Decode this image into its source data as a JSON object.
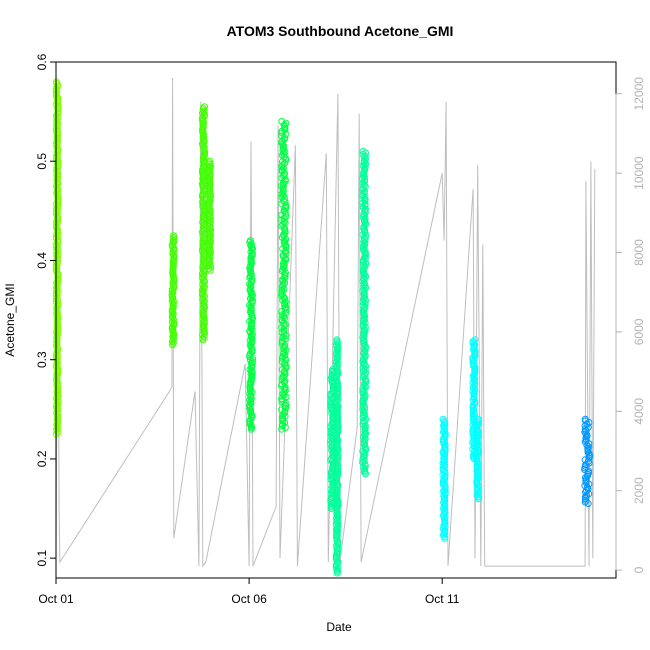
{
  "chart_data": {
    "type": "scatter",
    "title": "ATOM3 Southbound Acetone_GMI",
    "xlabel": "Date",
    "ylabel": "Acetone_GMI",
    "xlim": [
      0.0,
      14.5
    ],
    "ylim": [
      0.08,
      0.6
    ],
    "y2lim": [
      -200,
      12800
    ],
    "x_ticks": [
      {
        "value": 0,
        "label": "Oct 01"
      },
      {
        "value": 5,
        "label": "Oct 06"
      },
      {
        "value": 10,
        "label": "Oct 11"
      }
    ],
    "y_ticks": [
      0.1,
      0.2,
      0.3,
      0.4,
      0.5,
      0.6
    ],
    "y2_ticks": [
      0,
      2000,
      4000,
      6000,
      8000,
      10000,
      12000
    ],
    "grid": false,
    "legend": "none",
    "altitude_color": "#bebebe",
    "series": [
      {
        "day": 0.03,
        "x_width": 0.05,
        "y_min": 0.225,
        "y_max": 0.58,
        "color": "#80ff00"
      },
      {
        "day": 3.03,
        "x_width": 0.05,
        "y_min": 0.315,
        "y_max": 0.425,
        "color": "#40ff00"
      },
      {
        "day": 3.82,
        "x_width": 0.06,
        "y_min": 0.32,
        "y_max": 0.555,
        "color": "#40ff00"
      },
      {
        "day": 3.98,
        "x_width": 0.05,
        "y_min": 0.39,
        "y_max": 0.5,
        "color": "#40ff00"
      },
      {
        "day": 5.05,
        "x_width": 0.08,
        "y_min": 0.23,
        "y_max": 0.42,
        "color": "#00ff40"
      },
      {
        "day": 5.9,
        "x_width": 0.12,
        "y_min": 0.23,
        "y_max": 0.54,
        "color": "#00ff40"
      },
      {
        "day": 7.15,
        "x_width": 0.08,
        "y_min": 0.15,
        "y_max": 0.29,
        "color": "#00ff99"
      },
      {
        "day": 7.28,
        "x_width": 0.05,
        "y_min": 0.085,
        "y_max": 0.32,
        "color": "#00ff99"
      },
      {
        "day": 7.98,
        "x_width": 0.08,
        "y_min": 0.185,
        "y_max": 0.51,
        "color": "#00ff99"
      },
      {
        "day": 10.05,
        "x_width": 0.06,
        "y_min": 0.12,
        "y_max": 0.24,
        "color": "#00ffff"
      },
      {
        "day": 10.82,
        "x_width": 0.06,
        "y_min": 0.2,
        "y_max": 0.32,
        "color": "#00ffff"
      },
      {
        "day": 10.92,
        "x_width": 0.05,
        "y_min": 0.16,
        "y_max": 0.24,
        "color": "#00ffff"
      },
      {
        "day": 13.75,
        "x_width": 0.14,
        "y_min": 0.155,
        "y_max": 0.24,
        "color": "#0099ff"
      }
    ],
    "altitude_line": [
      [
        0.0,
        400
      ],
      [
        0.05,
        9500
      ],
      [
        0.08,
        1500
      ],
      [
        0.1,
        200
      ],
      [
        3.0,
        4600
      ],
      [
        3.02,
        12400
      ],
      [
        3.05,
        800
      ],
      [
        3.6,
        4500
      ],
      [
        3.7,
        100
      ],
      [
        3.75,
        11800
      ],
      [
        3.8,
        100
      ],
      [
        3.88,
        200
      ],
      [
        4.9,
        5200
      ],
      [
        5.0,
        100
      ],
      [
        5.05,
        10800
      ],
      [
        5.1,
        100
      ],
      [
        5.7,
        1600
      ],
      [
        5.75,
        11200
      ],
      [
        5.8,
        300
      ],
      [
        6.2,
        10700
      ],
      [
        6.25,
        100
      ],
      [
        7.0,
        10500
      ],
      [
        7.05,
        200
      ],
      [
        7.3,
        12000
      ],
      [
        7.35,
        200
      ],
      [
        7.8,
        3600
      ],
      [
        7.85,
        11500
      ],
      [
        7.9,
        200
      ],
      [
        10.0,
        10000
      ],
      [
        10.05,
        8300
      ],
      [
        10.1,
        11800
      ],
      [
        10.15,
        100
      ],
      [
        10.8,
        9600
      ],
      [
        10.85,
        300
      ],
      [
        10.92,
        10200
      ],
      [
        11.0,
        100
      ],
      [
        11.05,
        8200
      ],
      [
        11.1,
        100
      ],
      [
        13.7,
        100
      ],
      [
        13.72,
        9800
      ],
      [
        13.8,
        100
      ],
      [
        13.85,
        10300
      ],
      [
        13.9,
        300
      ],
      [
        13.95,
        10100
      ]
    ]
  }
}
